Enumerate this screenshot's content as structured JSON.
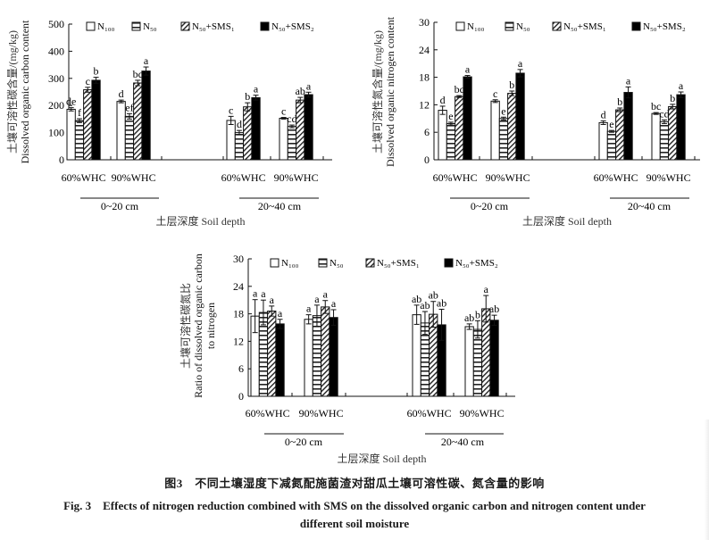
{
  "legend": [
    "N₁₀₀",
    "N₅₀",
    "N₅₀+SMS₁",
    "N₅₀+SMS₂"
  ],
  "chart_data": [
    {
      "type": "bar",
      "id": "doc",
      "ylabel_cn": "土壤可溶性碳含量/(mg/kg)",
      "ylabel_en": "Dissolved organic carbon content",
      "xlabel": "土层深度 Soil depth",
      "ylim": [
        0,
        500
      ],
      "yticks": [
        "0",
        "100",
        "200",
        "300",
        "400",
        "500"
      ],
      "depths": [
        "0~20 cm",
        "20~40 cm"
      ],
      "categories": [
        "60%WHC",
        "90%WHC",
        "60%WHC",
        "90%WHC"
      ],
      "series": [
        {
          "name": "N₁₀₀",
          "values": [
            186,
            215,
            145,
            153
          ],
          "errors": [
            6,
            5,
            15,
            3
          ],
          "letters": [
            "de",
            "d",
            "c",
            "c"
          ]
        },
        {
          "name": "N₅₀",
          "values": [
            144,
            160,
            100,
            123
          ],
          "errors": [
            7,
            10,
            8,
            5
          ],
          "letters": [
            "f",
            "ef",
            "d",
            "cd"
          ]
        },
        {
          "name": "N₅₀+SMS₁",
          "values": [
            258,
            283,
            195,
            220
          ],
          "errors": [
            9,
            10,
            15,
            10
          ],
          "letters": [
            "c",
            "bc",
            "b",
            "ab"
          ]
        },
        {
          "name": "N₅₀+SMS₂",
          "values": [
            293,
            327,
            229,
            240
          ],
          "errors": [
            11,
            15,
            9,
            9
          ],
          "letters": [
            "b",
            "a",
            "a",
            "a"
          ]
        }
      ]
    },
    {
      "type": "bar",
      "id": "don",
      "ylabel_cn": "土壤可溶性氮含量/(mg/kg)",
      "ylabel_en": "Dissolved organic nitrogen content",
      "xlabel": "土层深度 Soil depth",
      "ylim": [
        0,
        30
      ],
      "yticks": [
        "0",
        "6",
        "12",
        "18",
        "24",
        "30"
      ],
      "depths": [
        "0~20 cm",
        "20~40 cm"
      ],
      "categories": [
        "60%WHC",
        "90%WHC",
        "60%WHC",
        "90%WHC"
      ],
      "series": [
        {
          "name": "N₁₀₀",
          "values": [
            10.8,
            12.8,
            8.1,
            10.1
          ],
          "errors": [
            0.9,
            0.3,
            0.4,
            0.2
          ],
          "letters": [
            "d",
            "c",
            "d",
            "bc"
          ]
        },
        {
          "name": "N₅₀",
          "values": [
            7.9,
            9.0,
            6.2,
            8.3
          ],
          "errors": [
            0.3,
            0.3,
            0.2,
            0.4
          ],
          "letters": [
            "e",
            "e",
            "e",
            "cd"
          ]
        },
        {
          "name": "N₅₀+SMS₁",
          "values": [
            13.8,
            14.5,
            10.9,
            11.6
          ],
          "errors": [
            0.2,
            0.5,
            0.4,
            0.5
          ],
          "letters": [
            "bc",
            "b",
            "b",
            "b"
          ]
        },
        {
          "name": "N₅₀+SMS₂",
          "values": [
            18.1,
            18.9,
            14.7,
            14.2
          ],
          "errors": [
            0.3,
            0.8,
            1.2,
            0.6
          ],
          "letters": [
            "a",
            "a",
            "a",
            "a"
          ]
        }
      ]
    },
    {
      "type": "bar",
      "id": "cn",
      "ylabel_cn": "土壤可溶性碳氮比",
      "ylabel_en": "Ratio of dissolved organic carbon",
      "ylabel_en2": "to nitrogen",
      "xlabel": "土层深度 Soil depth",
      "ylim": [
        0,
        30
      ],
      "yticks": [
        "0",
        "6",
        "12",
        "18",
        "24",
        "30"
      ],
      "depths": [
        "0~20 cm",
        "20~40 cm"
      ],
      "categories": [
        "60%WHC",
        "90%WHC",
        "60%WHC",
        "90%WHC"
      ],
      "series": [
        {
          "name": "N₁₀₀",
          "values": [
            17.5,
            16.8,
            17.8,
            15.2
          ],
          "errors": [
            3.6,
            1.0,
            2.1,
            0.6
          ],
          "letters": [
            "a",
            "a",
            "ab",
            "ab"
          ]
        },
        {
          "name": "N₅₀",
          "values": [
            18.3,
            17.6,
            16.0,
            14.6
          ],
          "errors": [
            2.7,
            2.3,
            2.5,
            1.9
          ],
          "letters": [
            "a",
            "a",
            "ab",
            "b"
          ]
        },
        {
          "name": "N₅₀+SMS₁",
          "values": [
            18.6,
            19.5,
            17.9,
            19.1
          ],
          "errors": [
            1.1,
            1.4,
            2.8,
            2.9
          ],
          "letters": [
            "a",
            "a",
            "ab",
            "a"
          ]
        },
        {
          "name": "N₅₀+SMS₂",
          "values": [
            15.8,
            17.2,
            15.6,
            16.6
          ],
          "errors": [
            1.0,
            1.7,
            3.4,
            1.1
          ],
          "letters": [
            "a",
            "a",
            "ab",
            "ab"
          ]
        }
      ]
    }
  ],
  "caption": {
    "cn": "图3　不同土壤湿度下减氮配施菌渣对甜瓜土壤可溶性碳、氮含量的影响",
    "en_line1": "Fig. 3　Effects of nitrogen reduction combined with SMS on the dissolved organic carbon and nitrogen content under",
    "en_line2": "different soil moisture"
  }
}
